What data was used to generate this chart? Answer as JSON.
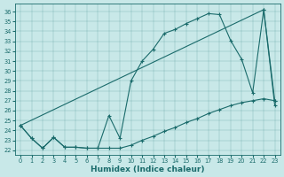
{
  "xlabel": "Humidex (Indice chaleur)",
  "background_color": "#c8e8e8",
  "line_color": "#1a6b6b",
  "xlim": [
    -0.5,
    23.5
  ],
  "ylim": [
    21.5,
    36.8
  ],
  "xticks": [
    0,
    1,
    2,
    3,
    4,
    5,
    6,
    7,
    8,
    9,
    10,
    11,
    12,
    13,
    14,
    15,
    16,
    17,
    18,
    19,
    20,
    21,
    22,
    23
  ],
  "yticks": [
    22,
    23,
    24,
    25,
    26,
    27,
    28,
    29,
    30,
    31,
    32,
    33,
    34,
    35,
    36
  ],
  "curve1_x": [
    0,
    1,
    2,
    3,
    4,
    5,
    6,
    7,
    8,
    9,
    10,
    11,
    12,
    13,
    14,
    15,
    16,
    17,
    18,
    19,
    20,
    21,
    22,
    23
  ],
  "curve1_y": [
    24.5,
    23.2,
    22.2,
    23.3,
    22.3,
    22.3,
    22.2,
    22.2,
    25.5,
    23.2,
    29.0,
    31.0,
    32.2,
    33.8,
    34.2,
    34.8,
    35.3,
    35.8,
    35.7,
    33.1,
    31.2,
    27.8,
    36.2,
    26.5
  ],
  "curve2_x": [
    0,
    1,
    2,
    3,
    4,
    5,
    6,
    7,
    8,
    9,
    10,
    11,
    12,
    13,
    14,
    15,
    16,
    17,
    18,
    19,
    20,
    21,
    22,
    23
  ],
  "curve2_y": [
    24.5,
    23.2,
    22.2,
    23.3,
    22.3,
    22.3,
    22.2,
    22.2,
    22.2,
    22.2,
    22.5,
    23.0,
    23.4,
    23.9,
    24.3,
    24.8,
    25.2,
    25.7,
    26.1,
    26.5,
    26.8,
    27.0,
    27.2,
    27.0
  ],
  "curve3_x": [
    0,
    22,
    23
  ],
  "curve3_y": [
    24.5,
    36.2,
    27.0
  ]
}
